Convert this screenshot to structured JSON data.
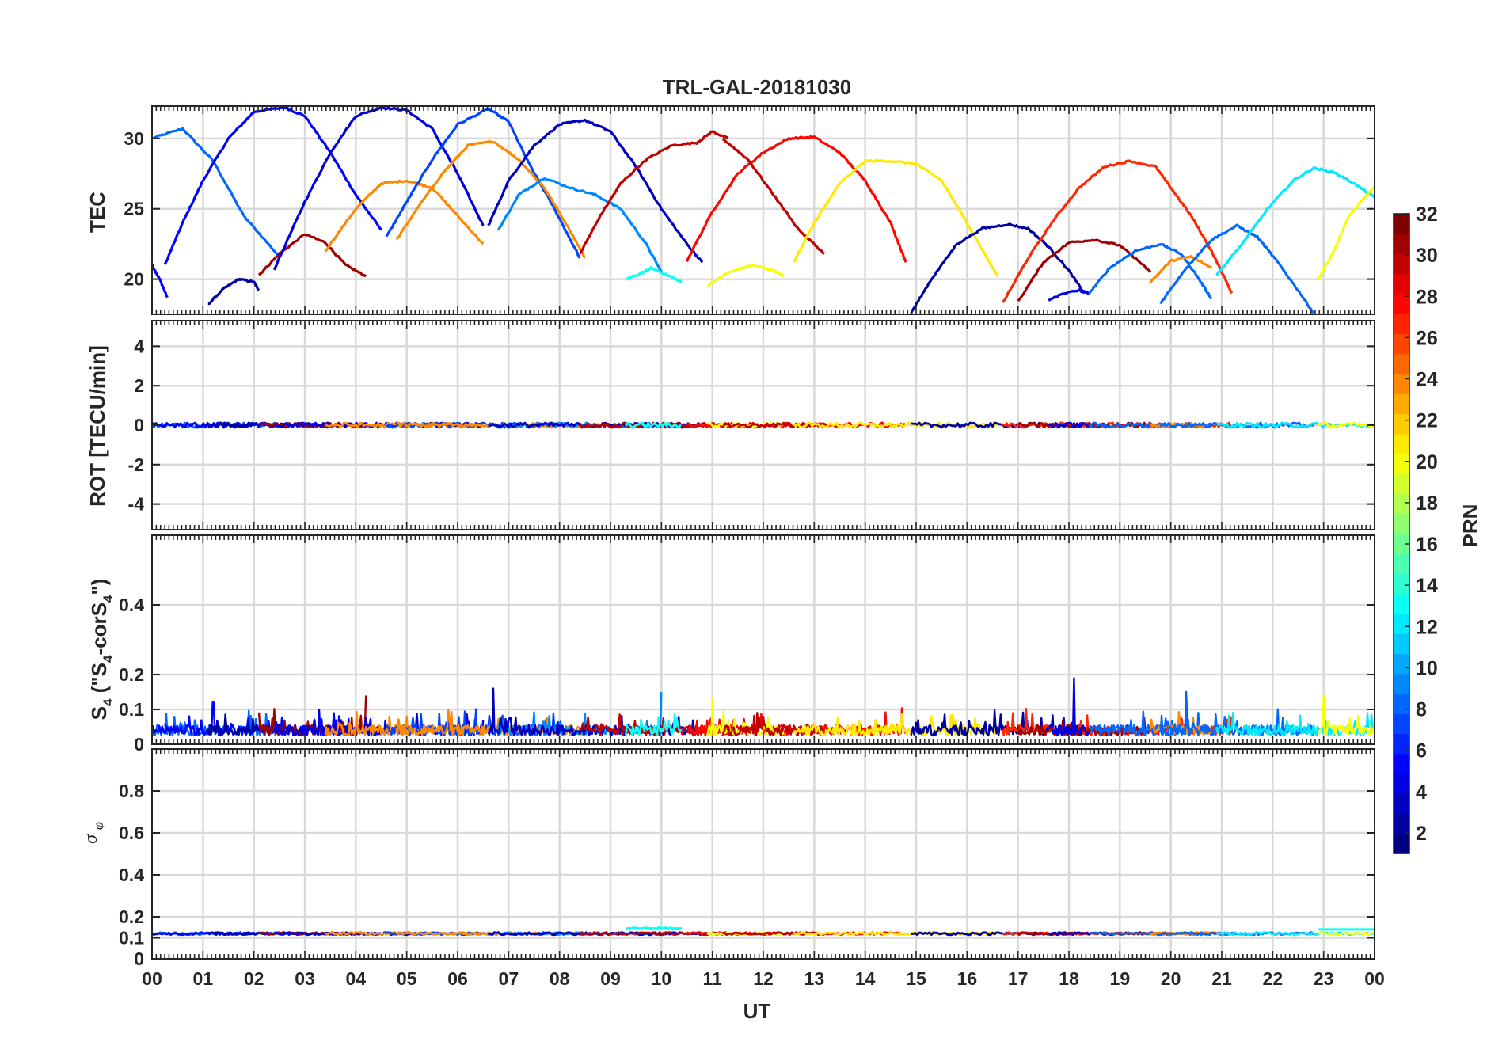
{
  "figure": {
    "title": "TRL-GAL-20181030",
    "xlabel": "UT",
    "x_ticks": [
      "00",
      "01",
      "02",
      "03",
      "04",
      "05",
      "06",
      "07",
      "08",
      "09",
      "10",
      "11",
      "12",
      "13",
      "14",
      "15",
      "16",
      "17",
      "18",
      "19",
      "20",
      "21",
      "22",
      "23",
      "00"
    ],
    "xlim": [
      0,
      24
    ]
  },
  "colorbar": {
    "label": "PRN",
    "colormap": "jet",
    "range": [
      1,
      32
    ],
    "ticks": [
      2,
      4,
      6,
      8,
      10,
      12,
      14,
      16,
      18,
      20,
      22,
      24,
      26,
      28,
      30,
      32
    ]
  },
  "chart_data": [
    {
      "type": "line",
      "panel": "tec",
      "ylabel": "TEC",
      "ylim": [
        17.5,
        32.3
      ],
      "yticks": [
        20,
        25,
        30
      ],
      "grid": true,
      "series": [
        {
          "prn": 8,
          "x": [
            0.0,
            0.6,
            1.2,
            1.8,
            2.5
          ],
          "y": [
            30.0,
            30.7,
            28.4,
            24.5,
            21.6
          ]
        },
        {
          "prn": 5,
          "x": [
            0.0,
            0.15,
            0.3
          ],
          "y": [
            21.0,
            20.0,
            18.7
          ]
        },
        {
          "prn": 5,
          "x": [
            0.25,
            0.6,
            1.0,
            1.5,
            2.0,
            2.6,
            3.0,
            3.5,
            4.0,
            4.5
          ],
          "y": [
            21.0,
            24.0,
            27.0,
            30.0,
            31.9,
            32.2,
            31.6,
            29.0,
            26.0,
            23.5
          ]
        },
        {
          "prn": 2,
          "x": [
            1.1,
            1.4,
            1.7,
            2.0,
            2.1
          ],
          "y": [
            18.2,
            19.3,
            20.0,
            19.8,
            19.2
          ]
        },
        {
          "prn": 31,
          "x": [
            2.1,
            2.5,
            3.0,
            3.4,
            3.8,
            4.2
          ],
          "y": [
            20.3,
            21.8,
            23.2,
            22.6,
            21.0,
            20.2
          ]
        },
        {
          "prn": 4,
          "x": [
            2.4,
            3.0,
            3.5,
            4.0,
            4.5,
            5.0,
            5.5,
            6.0,
            6.5
          ],
          "y": [
            20.7,
            25.5,
            29.0,
            31.6,
            32.2,
            32.0,
            30.7,
            27.5,
            23.8
          ]
        },
        {
          "prn": 24,
          "x": [
            3.4,
            4.0,
            4.5,
            5.0,
            5.5,
            6.0,
            6.5
          ],
          "y": [
            22.0,
            25.0,
            26.8,
            27.0,
            26.5,
            24.5,
            22.5
          ]
        },
        {
          "prn": 7,
          "x": [
            4.6,
            5.0,
            5.5,
            6.0,
            6.6,
            7.0,
            7.4,
            7.9,
            8.4
          ],
          "y": [
            23.0,
            25.5,
            28.5,
            31.0,
            32.1,
            31.2,
            28.2,
            25.0,
            21.5
          ]
        },
        {
          "prn": 24,
          "x": [
            4.8,
            5.2,
            5.7,
            6.2,
            6.7,
            7.2,
            7.7,
            8.2,
            8.5
          ],
          "y": [
            22.8,
            25.0,
            27.5,
            29.5,
            29.8,
            28.5,
            26.5,
            23.5,
            21.5
          ]
        },
        {
          "prn": 9,
          "x": [
            6.8,
            7.2,
            7.7,
            8.2,
            8.7,
            9.2,
            9.7,
            10.0
          ],
          "y": [
            23.5,
            26.0,
            27.2,
            26.5,
            26.0,
            25.0,
            22.5,
            20.5
          ]
        },
        {
          "prn": 3,
          "x": [
            6.6,
            7.0,
            7.5,
            8.0,
            8.5,
            9.0,
            9.5,
            10.0,
            10.5,
            10.8
          ],
          "y": [
            23.8,
            27.0,
            29.5,
            31.0,
            31.3,
            30.5,
            28.0,
            25.0,
            22.5,
            21.2
          ]
        },
        {
          "prn": 30,
          "x": [
            8.4,
            8.8,
            9.2,
            9.7,
            10.2,
            10.7,
            11.0,
            11.3
          ],
          "y": [
            21.8,
            24.5,
            26.8,
            28.5,
            29.5,
            29.7,
            30.5,
            30.0
          ]
        },
        {
          "prn": 13,
          "x": [
            9.3,
            9.6,
            9.8,
            10.1,
            10.4
          ],
          "y": [
            20.0,
            20.4,
            20.8,
            20.3,
            19.8
          ]
        },
        {
          "prn": 28,
          "x": [
            10.5,
            11.0,
            11.5,
            12.0,
            12.5,
            13.0,
            13.5,
            14.0,
            14.5,
            14.8
          ],
          "y": [
            21.3,
            24.8,
            27.5,
            29.0,
            30.0,
            30.1,
            29.0,
            27.0,
            24.0,
            21.2
          ]
        },
        {
          "prn": 20,
          "x": [
            10.9,
            11.3,
            11.8,
            12.2,
            12.4
          ],
          "y": [
            19.5,
            20.5,
            21.0,
            20.6,
            20.2
          ]
        },
        {
          "prn": 30,
          "x": [
            11.2,
            11.7,
            12.2,
            12.7,
            13.2
          ],
          "y": [
            30.0,
            28.5,
            26.0,
            23.5,
            21.8
          ]
        },
        {
          "prn": 21,
          "x": [
            12.6,
            13.0,
            13.5,
            14.0,
            14.5,
            15.0,
            15.5,
            16.0,
            16.6
          ],
          "y": [
            21.2,
            24.0,
            26.8,
            28.4,
            28.4,
            28.2,
            27.0,
            24.0,
            20.2
          ]
        },
        {
          "prn": 2,
          "x": [
            14.9,
            15.3,
            15.8,
            16.3,
            16.8,
            17.2,
            17.6,
            18.0,
            18.3
          ],
          "y": [
            17.6,
            20.0,
            22.5,
            23.6,
            23.9,
            23.6,
            22.3,
            20.6,
            19.0
          ]
        },
        {
          "prn": 27,
          "x": [
            16.7,
            17.2,
            17.7,
            18.2,
            18.7,
            19.2,
            19.7,
            20.0,
            20.4,
            20.8,
            21.2
          ],
          "y": [
            18.3,
            21.5,
            24.2,
            26.5,
            28.0,
            28.4,
            28.0,
            26.5,
            24.5,
            22.0,
            19.0
          ]
        },
        {
          "prn": 31,
          "x": [
            17.0,
            17.5,
            18.0,
            18.5,
            19.0,
            19.3,
            19.6
          ],
          "y": [
            18.4,
            21.2,
            22.6,
            22.8,
            22.4,
            21.5,
            20.5
          ]
        },
        {
          "prn": 4,
          "x": [
            17.6,
            17.9,
            18.2,
            18.4
          ],
          "y": [
            18.5,
            19.0,
            19.2,
            19.0
          ]
        },
        {
          "prn": 8,
          "x": [
            18.4,
            18.8,
            19.3,
            19.8,
            20.2,
            20.5,
            20.8
          ],
          "y": [
            19.0,
            20.8,
            22.0,
            22.5,
            21.8,
            20.3,
            18.6
          ]
        },
        {
          "prn": 24,
          "x": [
            19.6,
            20.0,
            20.4,
            20.8
          ],
          "y": [
            19.8,
            21.3,
            21.6,
            20.8
          ]
        },
        {
          "prn": 8,
          "x": [
            19.8,
            20.3,
            20.8,
            21.3,
            21.7,
            22.1,
            22.5,
            22.8
          ],
          "y": [
            18.3,
            20.8,
            22.8,
            23.8,
            23.0,
            21.2,
            19.2,
            17.6
          ]
        },
        {
          "prn": 12,
          "x": [
            20.9,
            21.4,
            21.9,
            22.4,
            22.8,
            23.2,
            23.6,
            24.0
          ],
          "y": [
            20.3,
            22.5,
            25.0,
            27.0,
            27.9,
            27.6,
            26.8,
            25.8
          ]
        },
        {
          "prn": 20,
          "x": [
            22.9,
            23.2,
            23.5,
            23.8,
            24.0
          ],
          "y": [
            20.0,
            22.0,
            24.5,
            25.8,
            26.6
          ]
        }
      ]
    },
    {
      "type": "line",
      "panel": "rot",
      "ylabel": "ROT [TECU/min]",
      "ylim": [
        -5.3,
        5.3
      ],
      "yticks": [
        -4,
        -2,
        0,
        2,
        4
      ],
      "grid": true,
      "note_values": "all satellites near 0 TECU/min throughout the day, within about ±0.2"
    },
    {
      "type": "line",
      "panel": "s4",
      "ylabel": "S4 (\"S4-corS4\")",
      "ylabel_parts": {
        "a": "S",
        "b": "4",
        "c": " (\"S",
        "d": "4",
        "e": "-corS",
        "f": "4",
        "g": "\")"
      },
      "ylim": [
        0,
        0.6
      ],
      "yticks": [
        0,
        0.1,
        0.2,
        0.4
      ],
      "grid": true,
      "baseline": 0.04,
      "peaks": [
        {
          "x": 0.3,
          "y": 0.15,
          "prn": 6
        },
        {
          "x": 1.2,
          "y": 0.12,
          "prn": 5
        },
        {
          "x": 4.2,
          "y": 0.14,
          "prn": 31
        },
        {
          "x": 6.7,
          "y": 0.16,
          "prn": 3
        },
        {
          "x": 9.3,
          "y": 0.14,
          "prn": 11
        },
        {
          "x": 10.0,
          "y": 0.15,
          "prn": 9
        },
        {
          "x": 11.0,
          "y": 0.13,
          "prn": 20
        },
        {
          "x": 18.1,
          "y": 0.19,
          "prn": 4
        },
        {
          "x": 20.3,
          "y": 0.15,
          "prn": 8
        },
        {
          "x": 23.0,
          "y": 0.14,
          "prn": 20
        }
      ]
    },
    {
      "type": "line",
      "panel": "sigma_phi",
      "ylabel": "σ φ",
      "ylabel_parts": {
        "sigma": "σ",
        "phi": "φ"
      },
      "ylim": [
        0,
        1.0
      ],
      "yticks": [
        0,
        0.1,
        0.2,
        0.4,
        0.6,
        0.8
      ],
      "grid": true,
      "baseline": 0.12,
      "elevated": [
        {
          "x0": 9.3,
          "x1": 10.4,
          "y": 0.145,
          "prn": 13
        },
        {
          "x0": 22.9,
          "x1": 24.0,
          "y": 0.14,
          "prn": 13
        }
      ]
    }
  ]
}
